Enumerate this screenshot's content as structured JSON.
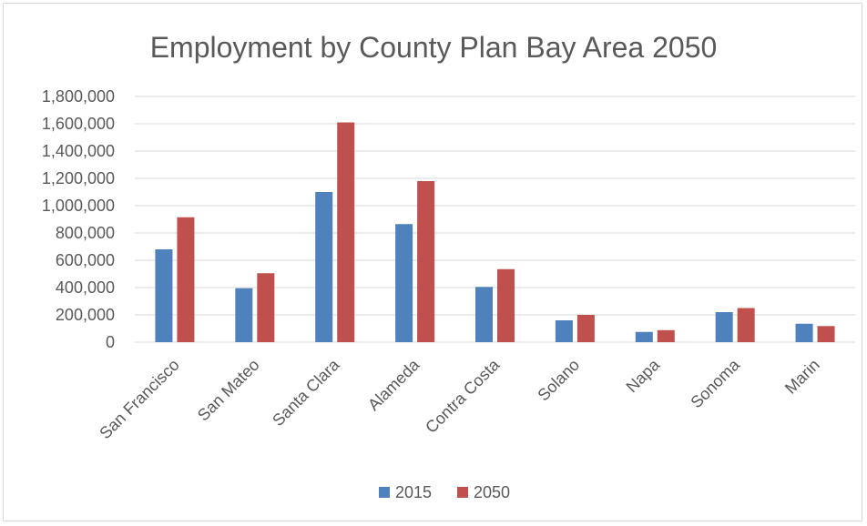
{
  "chart_data": {
    "type": "bar",
    "title": "Employment by County Plan Bay Area 2050",
    "categories": [
      "San Francisco",
      "San Mateo",
      "Santa Clara",
      "Alameda",
      "Contra Costa",
      "Solano",
      "Napa",
      "Sonoma",
      "Marin"
    ],
    "series": [
      {
        "name": "2015",
        "color": "#4f81bd",
        "values": [
          680000,
          395000,
          1100000,
          865000,
          405000,
          160000,
          75000,
          220000,
          135000
        ]
      },
      {
        "name": "2050",
        "color": "#c0504d",
        "values": [
          915000,
          505000,
          1610000,
          1180000,
          535000,
          200000,
          88000,
          250000,
          118000
        ]
      }
    ],
    "yticks": [
      "0",
      "200,000",
      "400,000",
      "600,000",
      "800,000",
      "1,000,000",
      "1,200,000",
      "1,400,000",
      "1,600,000",
      "1,800,000"
    ],
    "ylim": [
      0,
      1800000
    ],
    "grid": true,
    "legend_position": "bottom"
  }
}
